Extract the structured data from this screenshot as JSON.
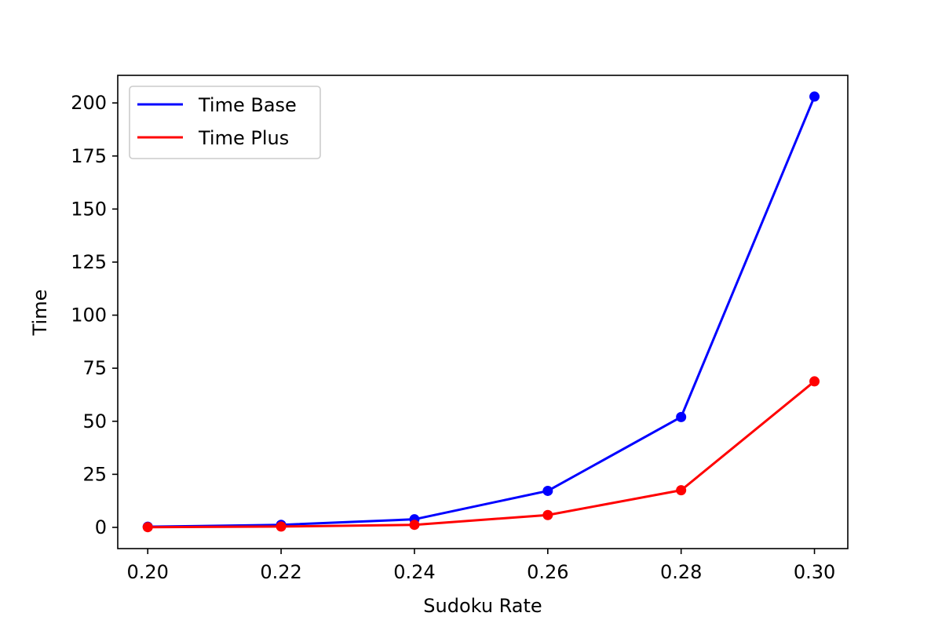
{
  "chart_data": {
    "type": "line",
    "title": "",
    "xlabel": "Sudoku Rate",
    "ylabel": "Time",
    "x": [
      0.2,
      0.22,
      0.24,
      0.26,
      0.28,
      0.3
    ],
    "x_tick_labels": [
      "0.20",
      "0.22",
      "0.24",
      "0.26",
      "0.28",
      "0.30"
    ],
    "y_ticks": [
      0,
      25,
      50,
      75,
      100,
      125,
      150,
      175,
      200
    ],
    "xlim": [
      0.1955,
      0.305
    ],
    "ylim": [
      -10,
      213
    ],
    "grid": false,
    "legend_position": "upper-left",
    "series": [
      {
        "name": "Time Base",
        "color": "#0000ff",
        "values": [
          0.3,
          1.2,
          3.8,
          17.2,
          52.0,
          203.0
        ]
      },
      {
        "name": "Time Plus",
        "color": "#ff0000",
        "values": [
          0.1,
          0.4,
          1.2,
          5.8,
          17.5,
          68.8
        ]
      }
    ]
  }
}
